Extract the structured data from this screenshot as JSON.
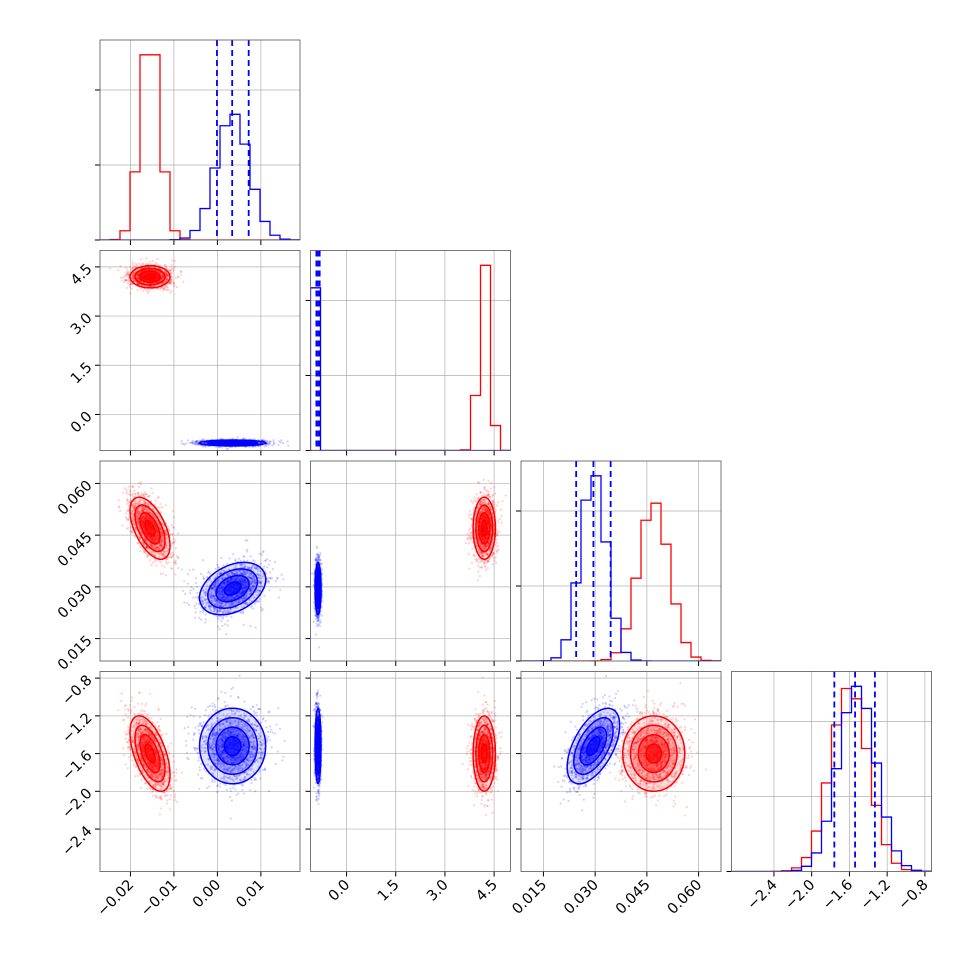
{
  "chart_data": {
    "type": "corner",
    "title": "",
    "parameters": [
      {
        "range": [
          -0.027,
          0.019
        ],
        "ticks": [
          -0.02,
          -0.01,
          0.0,
          0.01
        ],
        "tick_labels": [
          "−0.02",
          "−0.01",
          "0.00",
          "0.01"
        ]
      },
      {
        "range": [
          -1.1,
          5.0
        ],
        "ticks": [
          0.0,
          1.5,
          3.0,
          4.5
        ],
        "tick_labels": [
          "0.0",
          "1.5",
          "3.0",
          "4.5"
        ]
      },
      {
        "range": [
          0.0085,
          0.0665
        ],
        "ticks": [
          0.015,
          0.03,
          0.045,
          0.06
        ],
        "tick_labels": [
          "0.015",
          "0.030",
          "0.045",
          "0.060"
        ]
      },
      {
        "range": [
          -2.85,
          -0.73
        ],
        "ticks": [
          -2.4,
          -2.0,
          -1.6,
          -1.2,
          -0.8
        ],
        "tick_labels": [
          "−2.4",
          "−2.0",
          "−1.6",
          "−1.2",
          "−0.8"
        ]
      }
    ],
    "grid": true,
    "series": [
      {
        "color": "#ff0000",
        "means": [
          -0.0155,
          4.2,
          0.047,
          -1.6
        ],
        "stds": [
          0.0023,
          0.17,
          0.0045,
          0.2
        ],
        "correlation": {
          "0-1": 0.0,
          "0-2": -0.55,
          "0-3": -0.55,
          "1-2": 0.0,
          "1-3": 0.0,
          "2-3": 0.0
        }
      },
      {
        "color": "#0000ff",
        "means": [
          0.0035,
          -0.87,
          0.0295,
          -1.52
        ],
        "stds": [
          0.0038,
          0.045,
          0.0038,
          0.2
        ],
        "correlation": {
          "0-1": 0.0,
          "0-2": 0.35,
          "0-3": 0.0,
          "1-2": 0.0,
          "1-3": 0.0,
          "2-3": 0.55
        }
      }
    ],
    "quantile_lines": {
      "color": "#0000ff",
      "style": "dashed",
      "values": [
        [
          -0.0001,
          0.0034,
          0.0072
        ],
        [
          -0.92,
          -0.87,
          -0.82
        ],
        [
          0.0245,
          0.0295,
          0.0345
        ],
        [
          -1.76,
          -1.54,
          -1.33
        ]
      ]
    }
  }
}
